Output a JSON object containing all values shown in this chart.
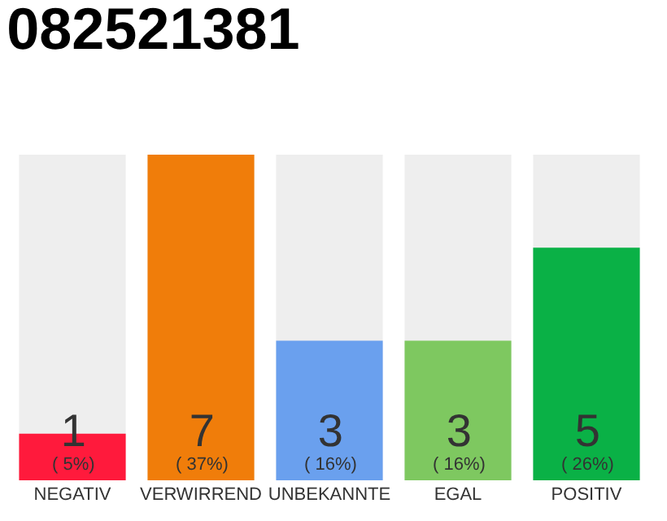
{
  "chart_data": {
    "type": "bar",
    "title": "082521381",
    "categories": [
      "NEGATIV",
      "VERWIRREND",
      "UNBEKANNTE",
      "EGAL",
      "POSITIV"
    ],
    "values": [
      1,
      7,
      3,
      3,
      5
    ],
    "colors": [
      "#ff1a3c",
      "#f07d0a",
      "#6aa0ee",
      "#7ec860",
      "#0ab146"
    ],
    "value_labels": [
      "1\n( 5%)",
      "7\n( 37%)",
      "3\n( 16%)",
      "3\n( 16%)",
      "5\n( 26%)"
    ],
    "data_labels": true
  }
}
